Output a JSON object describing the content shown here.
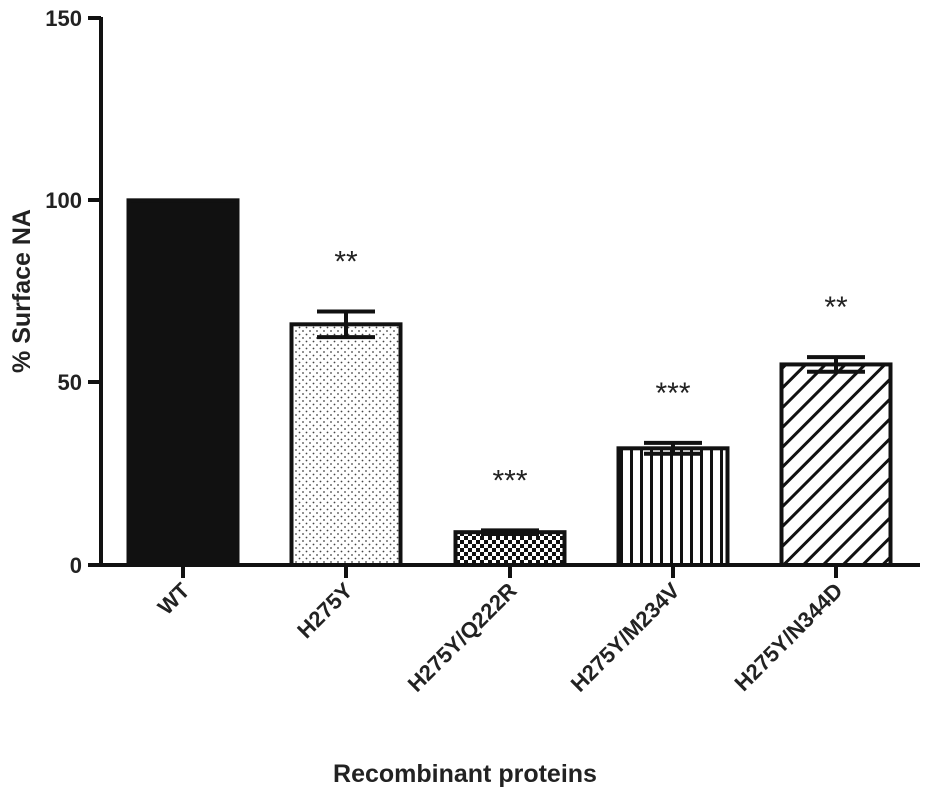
{
  "chart_data": {
    "type": "bar",
    "xlabel": "Recombinant proteins",
    "ylabel": "% Surface NA",
    "ylim": [
      0,
      150
    ],
    "yticks": [
      "0",
      "50",
      "100",
      "150"
    ],
    "categories": [
      "WT",
      "H275Y",
      "H275Y/Q222R",
      "H275Y/M234V",
      "H275Y/N344D"
    ],
    "values": [
      100,
      66,
      9,
      32,
      55
    ],
    "errors": [
      0,
      3.5,
      0.5,
      1.5,
      2
    ],
    "significance": [
      "",
      "**",
      "***",
      "***",
      "**"
    ],
    "fills": [
      "solid",
      "dots",
      "checker",
      "vertical-stripes",
      "diagonal-stripes"
    ],
    "grid": false
  }
}
